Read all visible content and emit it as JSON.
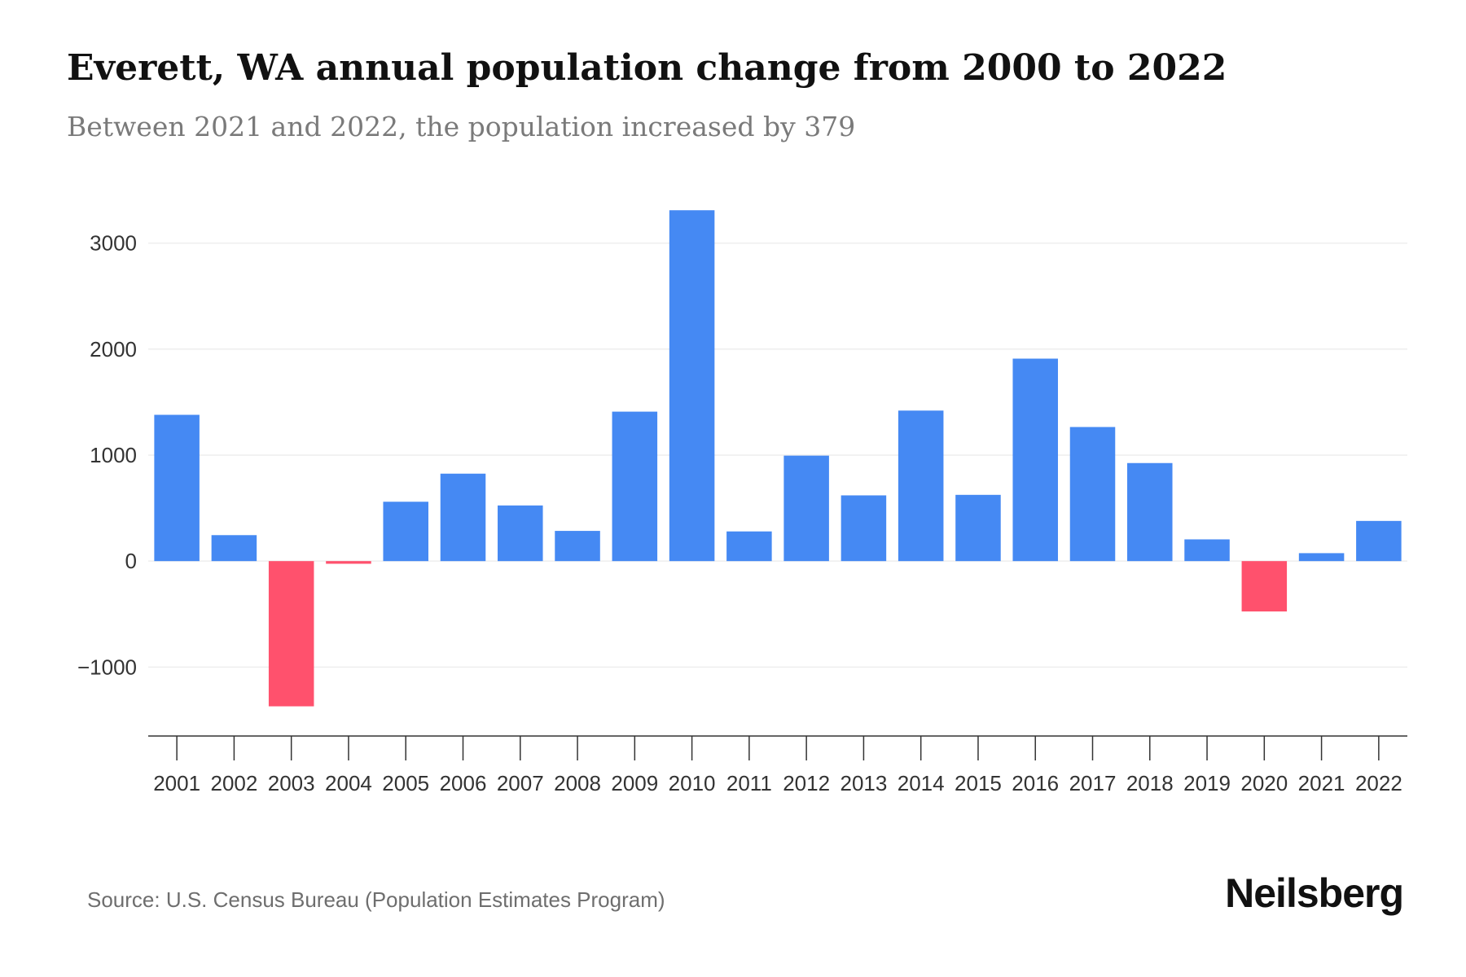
{
  "title": "Everett, WA annual population change from 2000 to 2022",
  "subtitle": "Between 2021 and 2022, the population increased by 379",
  "source": "Source: U.S. Census Bureau (Population Estimates Program)",
  "brand": "Neilsberg",
  "colors": {
    "positive": "#4589f3",
    "negative": "#ff516d",
    "axis": "#333333",
    "grid": "#eeeeee"
  },
  "chart_data": {
    "type": "bar",
    "title": "Everett, WA annual population change from 2000 to 2022",
    "xlabel": "",
    "ylabel": "",
    "ylim": [
      -1650,
      3450
    ],
    "yticks": [
      -1000,
      0,
      1000,
      2000,
      3000
    ],
    "ytick_labels": [
      "−1000",
      "0",
      "1000",
      "2000",
      "3000"
    ],
    "grid": true,
    "categories": [
      "2001",
      "2002",
      "2003",
      "2004",
      "2005",
      "2006",
      "2007",
      "2008",
      "2009",
      "2010",
      "2011",
      "2012",
      "2013",
      "2014",
      "2015",
      "2016",
      "2017",
      "2018",
      "2019",
      "2020",
      "2021",
      "2022"
    ],
    "values": [
      1380,
      245,
      -1370,
      -25,
      560,
      825,
      525,
      285,
      1410,
      3310,
      280,
      995,
      620,
      1420,
      625,
      1910,
      1265,
      925,
      205,
      -475,
      75,
      379
    ]
  }
}
